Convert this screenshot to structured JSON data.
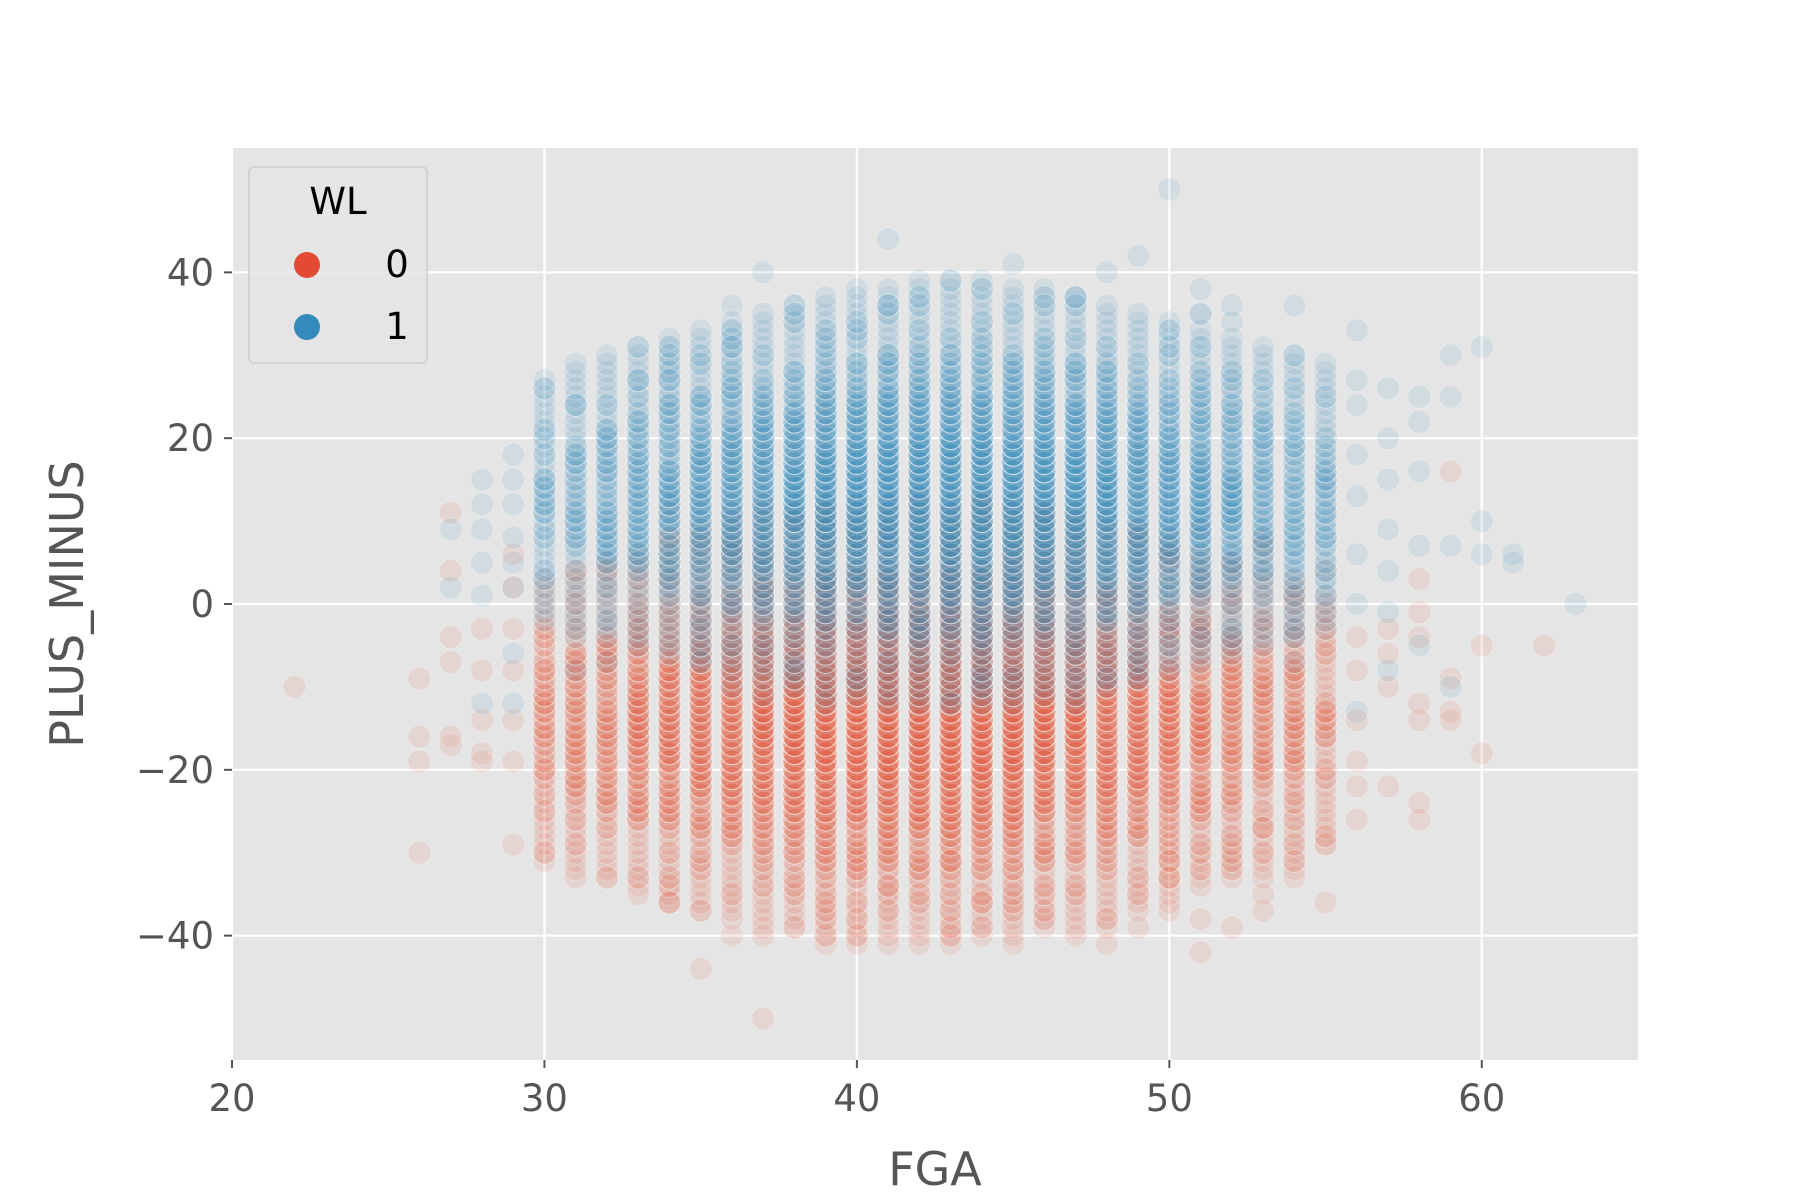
{
  "chart_data": {
    "type": "scatter",
    "xlabel": "FGA",
    "ylabel": "PLUS_MINUS",
    "xlim": [
      20,
      65
    ],
    "ylim": [
      -55,
      55
    ],
    "x_ticks": [
      20,
      30,
      40,
      50,
      60
    ],
    "y_ticks": [
      -40,
      -20,
      0,
      20,
      40
    ],
    "x_tick_labels": [
      "20",
      "30",
      "40",
      "50",
      "60"
    ],
    "y_tick_labels": [
      "−40",
      "−20",
      "0",
      "20",
      "40"
    ],
    "grid": true,
    "style": "ggplot",
    "background_color": "#e5e5e5",
    "grid_color": "#ffffff",
    "point_alpha": 0.1,
    "legend": {
      "title": "WL",
      "placement": "top-left",
      "entries": [
        {
          "label": "0",
          "color": "#e24a33"
        },
        {
          "label": "1",
          "color": "#348abd"
        }
      ]
    },
    "series": [
      {
        "name": "0",
        "color": "#e24a33",
        "points": [
          [
            22,
            -10
          ],
          [
            26,
            -9
          ],
          [
            26,
            -16
          ],
          [
            26,
            -19
          ],
          [
            26,
            -30
          ],
          [
            27,
            11
          ],
          [
            27,
            4
          ],
          [
            27,
            -4
          ],
          [
            27,
            -7
          ],
          [
            27,
            -16
          ],
          [
            27,
            -17
          ],
          [
            28,
            -3
          ],
          [
            28,
            -8
          ],
          [
            28,
            -14
          ],
          [
            28,
            -18
          ],
          [
            28,
            -19
          ],
          [
            29,
            6
          ],
          [
            29,
            2
          ],
          [
            29,
            -3
          ],
          [
            29,
            -8
          ],
          [
            29,
            -14
          ],
          [
            29,
            -19
          ],
          [
            29,
            -29
          ],
          [
            56,
            -4
          ],
          [
            56,
            -8
          ],
          [
            56,
            -14
          ],
          [
            56,
            -19
          ],
          [
            56,
            -22
          ],
          [
            56,
            -26
          ],
          [
            57,
            -3
          ],
          [
            57,
            -6
          ],
          [
            57,
            -10
          ],
          [
            57,
            -22
          ],
          [
            58,
            3
          ],
          [
            58,
            -1
          ],
          [
            58,
            -4
          ],
          [
            58,
            -12
          ],
          [
            58,
            -14
          ],
          [
            58,
            -24
          ],
          [
            58,
            -26
          ],
          [
            59,
            16
          ],
          [
            59,
            -9
          ],
          [
            59,
            -13
          ],
          [
            59,
            -14
          ],
          [
            60,
            -5
          ],
          [
            60,
            -18
          ],
          [
            62,
            -5
          ],
          [
            36,
            -27
          ],
          [
            37,
            -39
          ],
          [
            37,
            -40
          ],
          [
            37,
            -50
          ],
          [
            35,
            -44
          ],
          [
            35,
            -37
          ],
          [
            34,
            -36
          ],
          [
            33,
            -35
          ],
          [
            32,
            -33
          ],
          [
            31,
            -26
          ],
          [
            39,
            -36
          ],
          [
            40,
            -32
          ],
          [
            40,
            -36
          ],
          [
            40,
            -38
          ],
          [
            41,
            -34
          ],
          [
            41,
            -37
          ],
          [
            42,
            -35
          ],
          [
            43,
            -31
          ],
          [
            44,
            -39
          ],
          [
            44,
            -36
          ],
          [
            46,
            -34
          ],
          [
            47,
            -40
          ],
          [
            48,
            -38
          ],
          [
            48,
            -41
          ],
          [
            49,
            -35
          ],
          [
            50,
            -31
          ],
          [
            50,
            -33
          ],
          [
            51,
            -42
          ],
          [
            51,
            -29
          ],
          [
            52,
            -39
          ],
          [
            53,
            -27
          ],
          [
            53,
            -30
          ],
          [
            53,
            -35
          ],
          [
            54,
            -31
          ]
        ],
        "dense_band": {
          "x_range": [
            30,
            55
          ],
          "y_center": -14,
          "y_spread": 16,
          "x_peak": 42
        }
      },
      {
        "name": "1",
        "color": "#348abd",
        "points": [
          [
            28,
            15
          ],
          [
            28,
            12
          ],
          [
            28,
            9
          ],
          [
            28,
            5
          ],
          [
            28,
            1
          ],
          [
            28,
            -12
          ],
          [
            29,
            18
          ],
          [
            29,
            15
          ],
          [
            29,
            12
          ],
          [
            29,
            8
          ],
          [
            29,
            5
          ],
          [
            29,
            2
          ],
          [
            29,
            -6
          ],
          [
            29,
            -12
          ],
          [
            27,
            9
          ],
          [
            27,
            2
          ],
          [
            31,
            24
          ],
          [
            32,
            24
          ],
          [
            33,
            27
          ],
          [
            34,
            27
          ],
          [
            35,
            29
          ],
          [
            36,
            31
          ],
          [
            37,
            40
          ],
          [
            38,
            36
          ],
          [
            38,
            35
          ],
          [
            39,
            33
          ],
          [
            40,
            38
          ],
          [
            41,
            44
          ],
          [
            41,
            36
          ],
          [
            42,
            39
          ],
          [
            43,
            39
          ],
          [
            44,
            39
          ],
          [
            45,
            41
          ],
          [
            46,
            36
          ],
          [
            47,
            37
          ],
          [
            48,
            40
          ],
          [
            49,
            42
          ],
          [
            50,
            50
          ],
          [
            50,
            33
          ],
          [
            51,
            38
          ],
          [
            51,
            35
          ],
          [
            52,
            36
          ],
          [
            52,
            34
          ],
          [
            54,
            36
          ],
          [
            54,
            30
          ],
          [
            56,
            33
          ],
          [
            56,
            27
          ],
          [
            56,
            24
          ],
          [
            56,
            18
          ],
          [
            56,
            13
          ],
          [
            56,
            6
          ],
          [
            56,
            0
          ],
          [
            56,
            -13
          ],
          [
            57,
            26
          ],
          [
            57,
            20
          ],
          [
            57,
            15
          ],
          [
            57,
            9
          ],
          [
            57,
            4
          ],
          [
            57,
            -1
          ],
          [
            57,
            -8
          ],
          [
            58,
            25
          ],
          [
            58,
            22
          ],
          [
            58,
            16
          ],
          [
            58,
            7
          ],
          [
            58,
            -5
          ],
          [
            59,
            30
          ],
          [
            59,
            25
          ],
          [
            59,
            7
          ],
          [
            59,
            -10
          ],
          [
            60,
            31
          ],
          [
            60,
            10
          ],
          [
            60,
            6
          ],
          [
            61,
            6
          ],
          [
            61,
            5
          ],
          [
            63,
            0
          ]
        ],
        "dense_band": {
          "x_range": [
            30,
            55
          ],
          "y_center": 13,
          "y_spread": 15,
          "x_peak": 43
        }
      }
    ]
  }
}
